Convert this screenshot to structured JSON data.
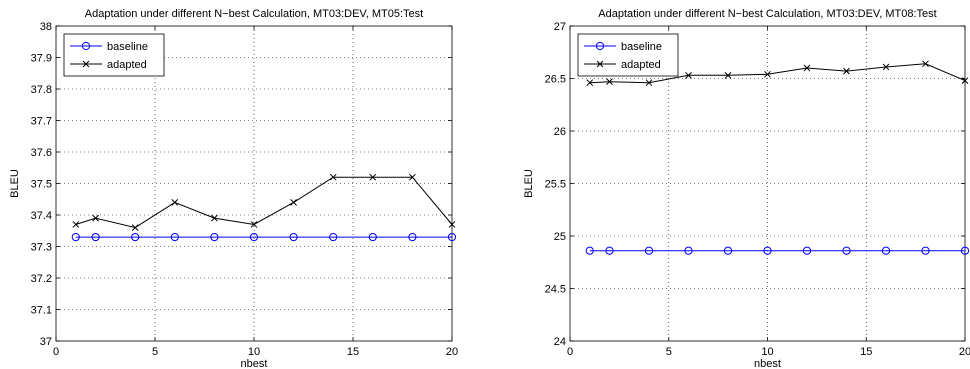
{
  "chart_data": [
    {
      "type": "line",
      "title": "Adaptation under different N−best Calculation, MT03:DEV, MT05:Test",
      "xlabel": "nbest",
      "ylabel": "BLEU",
      "xlim": [
        0,
        20
      ],
      "ylim": [
        37,
        38
      ],
      "xticks": [
        "0",
        "5",
        "10",
        "15",
        "20"
      ],
      "yticks": [
        "37",
        "37.1",
        "37.2",
        "37.3",
        "37.4",
        "37.5",
        "37.6",
        "37.7",
        "37.8",
        "37.9",
        "38"
      ],
      "grid": true,
      "legend_position": "top-left",
      "x": [
        1,
        2,
        4,
        6,
        8,
        10,
        12,
        14,
        16,
        18,
        20
      ],
      "series": [
        {
          "name": "baseline",
          "color": "#0000ff",
          "marker": "circle",
          "values": [
            37.33,
            37.33,
            37.33,
            37.33,
            37.33,
            37.33,
            37.33,
            37.33,
            37.33,
            37.33,
            37.33
          ]
        },
        {
          "name": "adapted",
          "color": "#000000",
          "marker": "x",
          "values": [
            37.37,
            37.39,
            37.36,
            37.44,
            37.39,
            37.37,
            37.44,
            37.52,
            37.52,
            37.52,
            37.37
          ]
        }
      ]
    },
    {
      "type": "line",
      "title": "Adaptation under different N−best Calculation, MT03:DEV, MT08:Test",
      "xlabel": "nbest",
      "ylabel": "BLEU",
      "xlim": [
        0,
        20
      ],
      "ylim": [
        24,
        27
      ],
      "xticks": [
        "0",
        "5",
        "10",
        "15",
        "20"
      ],
      "yticks": [
        "24",
        "24.5",
        "25",
        "25.5",
        "26",
        "26.5",
        "27"
      ],
      "grid": true,
      "legend_position": "top-left",
      "x": [
        1,
        2,
        4,
        6,
        8,
        10,
        12,
        14,
        16,
        18,
        20
      ],
      "series": [
        {
          "name": "baseline",
          "color": "#0000ff",
          "marker": "circle",
          "values": [
            24.86,
            24.86,
            24.86,
            24.86,
            24.86,
            24.86,
            24.86,
            24.86,
            24.86,
            24.86,
            24.86
          ]
        },
        {
          "name": "adapted",
          "color": "#000000",
          "marker": "x",
          "values": [
            26.46,
            26.47,
            26.46,
            26.53,
            26.53,
            26.54,
            26.6,
            26.57,
            26.61,
            26.64,
            26.48
          ]
        }
      ]
    }
  ]
}
